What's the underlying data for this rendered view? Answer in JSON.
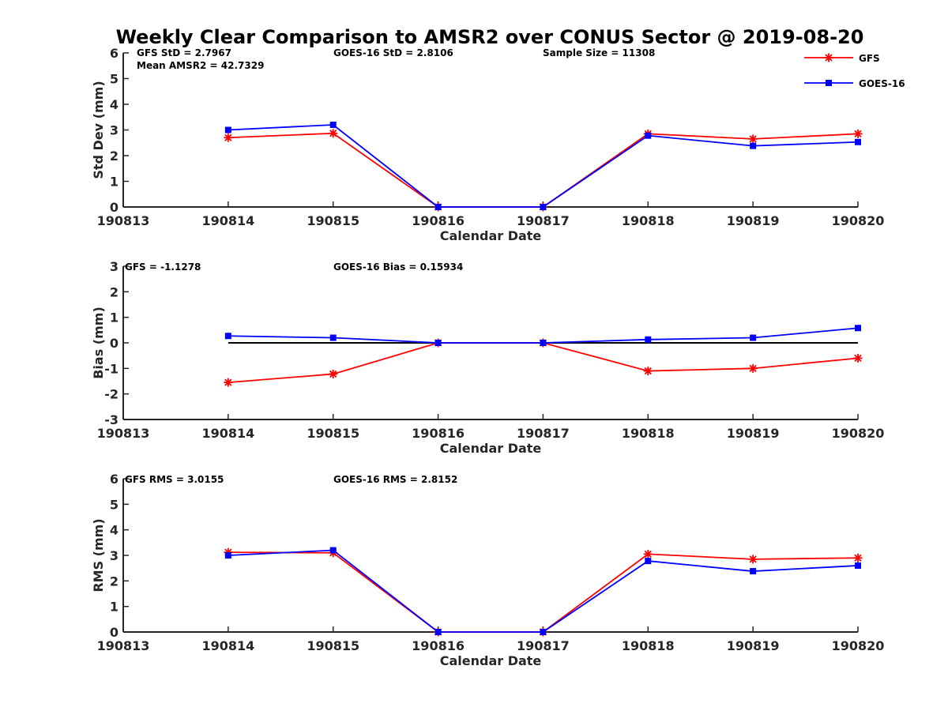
{
  "chart_data": {
    "title": "Weekly Clear Comparison to AMSR2 over CONUS Sector @ 2019-08-20",
    "type": "line",
    "categories": [
      "190813",
      "190814",
      "190815",
      "190816",
      "190817",
      "190818",
      "190819",
      "190820"
    ],
    "legend": {
      "placement": "top-right",
      "entries": [
        {
          "name": "GFS",
          "color": "#ff0000",
          "marker": "asterisk"
        },
        {
          "name": "GOES-16",
          "color": "#0000ff",
          "marker": "square"
        }
      ]
    },
    "panels": [
      {
        "id": "std",
        "ylabel": "Std Dev (mm)",
        "xlabel": "Calendar Date",
        "ylim": [
          0,
          6
        ],
        "yticks": [
          "0",
          "1",
          "2",
          "3",
          "4",
          "5",
          "6"
        ],
        "annotations": [
          "GFS StD = 2.7967",
          "GOES-16 StD = 2.8106",
          "Sample Size = 11308",
          "Mean AMSR2 = 42.7329"
        ],
        "zero_line": false,
        "series": [
          {
            "name": "GFS",
            "color": "#ff0000",
            "marker": "asterisk",
            "x": [
              "190814",
              "190815",
              "190816",
              "190817",
              "190818",
              "190819",
              "190820"
            ],
            "values": [
              2.7,
              2.87,
              0,
              0,
              2.85,
              2.65,
              2.85
            ]
          },
          {
            "name": "GOES-16",
            "color": "#0000ff",
            "marker": "square",
            "x": [
              "190814",
              "190815",
              "190816",
              "190817",
              "190818",
              "190819",
              "190820"
            ],
            "values": [
              3.0,
              3.2,
              0,
              0,
              2.78,
              2.38,
              2.53
            ]
          }
        ]
      },
      {
        "id": "bias",
        "ylabel": "Bias (mm)",
        "xlabel": "Calendar Date",
        "ylim": [
          -3,
          3
        ],
        "yticks": [
          "-3",
          "-2",
          "-1",
          "0",
          "1",
          "2",
          "3"
        ],
        "annotations": [
          "GFS = -1.1278",
          "GOES-16 Bias  = 0.15934"
        ],
        "zero_line": true,
        "series": [
          {
            "name": "GFS",
            "color": "#ff0000",
            "marker": "asterisk",
            "x": [
              "190814",
              "190815",
              "190816",
              "190817",
              "190818",
              "190819",
              "190820"
            ],
            "values": [
              -1.55,
              -1.22,
              0,
              0,
              -1.1,
              -1.0,
              -0.6
            ]
          },
          {
            "name": "GOES-16",
            "color": "#0000ff",
            "marker": "square",
            "x": [
              "190814",
              "190815",
              "190816",
              "190817",
              "190818",
              "190819",
              "190820"
            ],
            "values": [
              0.27,
              0.2,
              0,
              0,
              0.13,
              0.2,
              0.58
            ]
          }
        ]
      },
      {
        "id": "rms",
        "ylabel": "RMS (mm)",
        "xlabel": "Calendar Date",
        "ylim": [
          0,
          6
        ],
        "yticks": [
          "0",
          "1",
          "2",
          "3",
          "4",
          "5",
          "6"
        ],
        "annotations": [
          "GFS RMS = 3.0155",
          "GOES-16 RMS = 2.8152"
        ],
        "zero_line": false,
        "series": [
          {
            "name": "GFS",
            "color": "#ff0000",
            "marker": "asterisk",
            "x": [
              "190814",
              "190815",
              "190816",
              "190817",
              "190818",
              "190819",
              "190820"
            ],
            "values": [
              3.12,
              3.1,
              0,
              0,
              3.05,
              2.85,
              2.9
            ]
          },
          {
            "name": "GOES-16",
            "color": "#0000ff",
            "marker": "square",
            "x": [
              "190814",
              "190815",
              "190816",
              "190817",
              "190818",
              "190819",
              "190820"
            ],
            "values": [
              3.0,
              3.2,
              0,
              0,
              2.78,
              2.38,
              2.6
            ]
          }
        ]
      }
    ]
  }
}
